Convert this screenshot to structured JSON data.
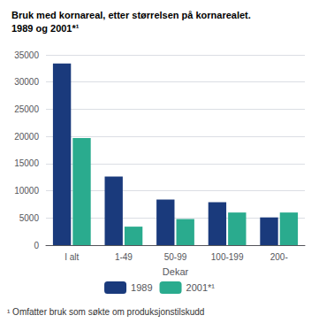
{
  "chart_data": {
    "type": "bar",
    "title": "Bruk med kornareal, etter størrelsen på kornarealet.",
    "subtitle": "1989 og 2001*¹",
    "xlabel": "Dekar",
    "categories": [
      "I alt",
      "1-49",
      "50-99",
      "100-199",
      "200-"
    ],
    "series": [
      {
        "name": "1989",
        "color": "#1a3a7c",
        "values": [
          33400,
          12600,
          8400,
          7900,
          5100
        ]
      },
      {
        "name": "2001*¹",
        "color": "#2aab8e",
        "values": [
          19700,
          3400,
          4800,
          6000,
          6000
        ]
      }
    ],
    "ylim": [
      0,
      35000
    ],
    "yticks": [
      0,
      5000,
      10000,
      15000,
      20000,
      25000,
      30000,
      35000
    ],
    "grid": true,
    "legend": "bottom",
    "annotations": [
      "¹ Omfatter bruk som søkte om produksjonstilskudd"
    ]
  }
}
